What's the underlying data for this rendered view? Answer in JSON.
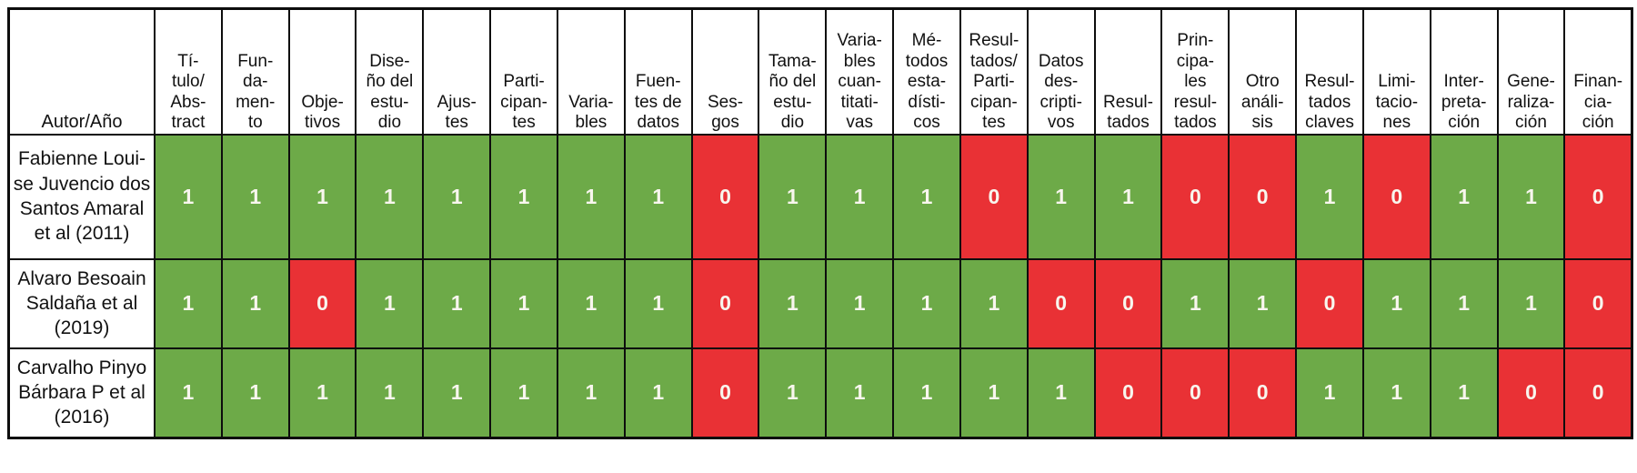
{
  "table": {
    "corner_label": "Autor/Año",
    "columns": [
      "Tí-\ntulo/\nAbs-\ntract",
      "Fun-\nda-\nmen-\nto",
      "Obje-\ntivos",
      "Dise-\nño del\nestu-\ndio",
      "Ajus-\ntes",
      "Parti-\ncipan-\ntes",
      "Varia-\nbles",
      "Fuen-\ntes de\ndatos",
      "Ses-\ngos",
      "Tama-\nño del\nestu-\ndio",
      "Varia-\nbles\ncuan-\ntitati-\nvas",
      "Mé-\ntodos\nesta-\ndísti-\ncos",
      "Resul-\ntados/\nParti-\ncipan-\ntes",
      "Datos\ndes-\ncripti-\nvos",
      "Resul-\ntados",
      "Prin-\ncipa-\nles\nresul-\ntados",
      "Otro\nanáli-\nsis",
      "Resul-\ntados\nclaves",
      "Limi-\ntacio-\nnes",
      "Inter-\npreta-\nción",
      "Gene-\nraliza-\nción",
      "Finan-\ncia-\nción"
    ],
    "rows": [
      {
        "author": "Fabienne Loui-\nse Juvencio dos\nSantos Amaral\net al (2011)",
        "values": [
          1,
          1,
          1,
          1,
          1,
          1,
          1,
          1,
          0,
          1,
          1,
          1,
          0,
          1,
          1,
          0,
          0,
          1,
          0,
          1,
          1,
          0
        ]
      },
      {
        "author": "Alvaro Besoain\nSaldaña et al\n(2019)",
        "values": [
          1,
          1,
          0,
          1,
          1,
          1,
          1,
          1,
          0,
          1,
          1,
          1,
          1,
          0,
          0,
          1,
          1,
          0,
          1,
          1,
          1,
          0
        ]
      },
      {
        "author": "Carvalho Pinyo\nBárbara P et al\n(2016)",
        "values": [
          1,
          1,
          1,
          1,
          1,
          1,
          1,
          1,
          0,
          1,
          1,
          1,
          1,
          1,
          0,
          0,
          0,
          1,
          1,
          1,
          0,
          0
        ]
      }
    ]
  },
  "colors": {
    "pass_green": "#6DAA48",
    "fail_red": "#E93135",
    "border": "#0D0D0D",
    "digit": "#F8F6EE"
  }
}
